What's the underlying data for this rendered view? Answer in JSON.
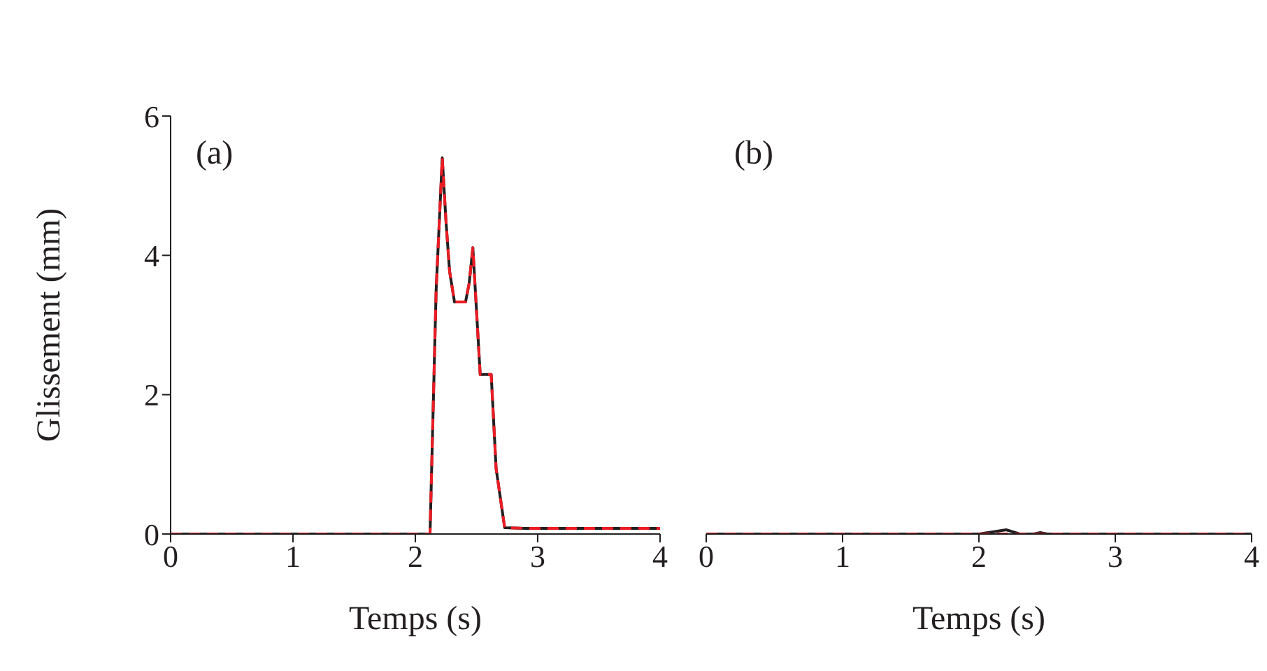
{
  "chart_data": [
    {
      "type": "line",
      "xlabel": "Temps (s)",
      "ylabel": "Glissement (mm)",
      "annotations": [
        "(a)"
      ],
      "xlim": [
        0,
        4
      ],
      "xticks": [
        0,
        1,
        2,
        3,
        4
      ],
      "ylim": [
        0,
        6
      ],
      "yticks": [
        0,
        2,
        4,
        6
      ],
      "grid": false,
      "legend": false,
      "marker": "none",
      "series": [
        {
          "color": "#231f20",
          "line_style": "solid",
          "x": [
            0,
            0.5,
            1,
            1.5,
            1.7,
            2.1,
            2.12,
            2.17,
            2.22,
            2.25,
            2.28,
            2.32,
            2.41,
            2.44,
            2.47,
            2.5,
            2.53,
            2.62,
            2.66,
            2.73,
            2.9,
            3,
            4
          ],
          "values": [
            0,
            0,
            0,
            0,
            0,
            0,
            0,
            3.5,
            5.4,
            4.5,
            3.77,
            3.33,
            3.33,
            3.6,
            4.11,
            3.2,
            2.29,
            2.29,
            0.94,
            0.09,
            0.08,
            0.08,
            0.08
          ]
        },
        {
          "color": "#ed1c24",
          "line_style": "dashed",
          "x": [
            0,
            0.5,
            1,
            1.5,
            1.7,
            2.1,
            2.12,
            2.17,
            2.22,
            2.25,
            2.28,
            2.32,
            2.41,
            2.44,
            2.47,
            2.5,
            2.53,
            2.62,
            2.66,
            2.73,
            2.9,
            3,
            4
          ],
          "values": [
            0,
            0,
            0,
            0,
            0,
            0,
            0,
            3.5,
            5.4,
            4.5,
            3.77,
            3.33,
            3.33,
            3.6,
            4.11,
            3.2,
            2.29,
            2.29,
            0.94,
            0.09,
            0.08,
            0.08,
            0.08
          ]
        }
      ]
    },
    {
      "type": "line",
      "xlabel": "Temps (s)",
      "annotations": [
        "(b)"
      ],
      "xlim": [
        0,
        4
      ],
      "xticks": [
        0,
        1,
        2,
        3,
        4
      ],
      "ylim": [
        0,
        6
      ],
      "yticks": [
        0,
        2,
        4,
        6
      ],
      "tick_labels": "x",
      "grid": false,
      "legend": false,
      "marker": "none",
      "series": [
        {
          "color": "#231f20",
          "line_style": "solid",
          "x": [
            0,
            1,
            2,
            2.1,
            2.2,
            2.3,
            2.4,
            2.45,
            2.5,
            3,
            4
          ],
          "values": [
            0,
            0,
            0,
            0.03,
            0.06,
            0,
            0,
            0.02,
            0,
            0,
            0
          ]
        },
        {
          "color": "#ed1c24",
          "line_style": "dashed",
          "x": [
            0,
            1,
            2,
            2.1,
            2.2,
            2.3,
            2.4,
            2.45,
            2.5,
            3,
            4
          ],
          "values": [
            0,
            0,
            0,
            0,
            0,
            0,
            0,
            0,
            0,
            0,
            0
          ]
        }
      ]
    }
  ]
}
